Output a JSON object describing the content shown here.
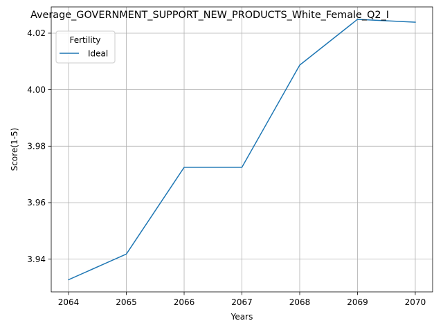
{
  "chart_data": {
    "type": "line",
    "title": "Average_GOVERNMENT_SUPPORT_NEW_PRODUCTS_White_Female_Q2_I",
    "xlabel": "Years",
    "ylabel": "Score(1-5)",
    "x": [
      2064,
      2065,
      2066,
      2067,
      2068,
      2069,
      2070
    ],
    "x_ticks": [
      "2064",
      "2065",
      "2066",
      "2067",
      "2068",
      "2069",
      "2070"
    ],
    "y_ticks": [
      "3.94",
      "3.96",
      "3.98",
      "4.00",
      "4.02"
    ],
    "y_tick_values": [
      3.94,
      3.96,
      3.98,
      4.0,
      4.02
    ],
    "xlim": [
      2063.7,
      2070.3
    ],
    "ylim": [
      3.9284,
      4.0293
    ],
    "grid": true,
    "legend": {
      "title": "Fertility",
      "placement": "upper-left"
    },
    "series": [
      {
        "name": "Ideal",
        "color": "#1f77b4",
        "values": [
          3.9327,
          3.9418,
          3.9725,
          3.9725,
          4.0087,
          4.0249,
          4.0239
        ]
      }
    ]
  }
}
